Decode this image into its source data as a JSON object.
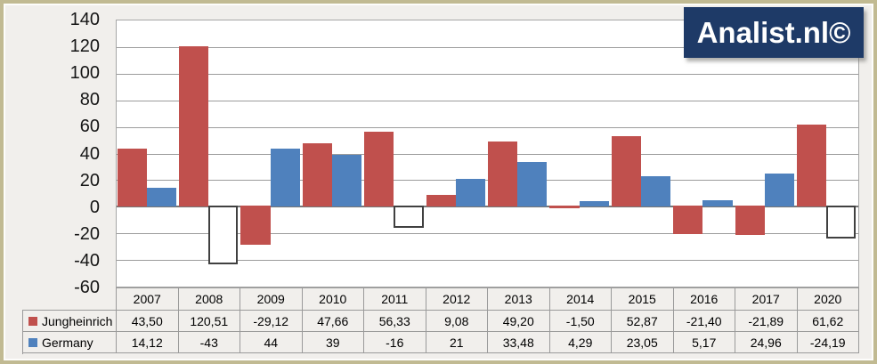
{
  "logo": {
    "text": "Analist.nl©"
  },
  "colors": {
    "jungheinrich_red": "#c0504d",
    "germany_blue": "#4f81bd",
    "negative_invert_fill": "#ffffff",
    "negative_invert_border": "#404040",
    "logo_bg": "#1e3a67",
    "frame_border_tan": "#c1ba92",
    "background": "#f1efec"
  },
  "chart_data": {
    "type": "bar",
    "title": "",
    "categories": [
      "2007",
      "2008",
      "2009",
      "2010",
      "2011",
      "2012",
      "2013",
      "2014",
      "2015",
      "2016",
      "2017",
      "2020"
    ],
    "series": [
      {
        "name": "Jungheinrich",
        "color": "#c0504d",
        "values": [
          43.5,
          120.51,
          -29.12,
          47.66,
          56.33,
          9.08,
          49.2,
          -1.5,
          52.87,
          -21.4,
          -21.89,
          61.62
        ],
        "labels": [
          "43,50",
          "120,51",
          "-29,12",
          "47,66",
          "56,33",
          "9,08",
          "49,20",
          "-1,50",
          "52,87",
          "-21,40",
          "-21,89",
          "61,62"
        ]
      },
      {
        "name": "Germany",
        "color": "#4f81bd",
        "negative_style": "white-fill-dark-outline",
        "values": [
          14.12,
          -43,
          44,
          39,
          -16,
          21,
          33.48,
          4.29,
          23.05,
          5.17,
          24.96,
          -24.19
        ],
        "labels": [
          "14,12",
          "-43",
          "44",
          "39",
          "-16",
          "21",
          "33,48",
          "4,29",
          "23,05",
          "5,17",
          "24,96",
          "-24,19"
        ]
      }
    ],
    "ylim": [
      -60,
      140
    ],
    "ytick_step": 20,
    "yticks": [
      140,
      120,
      100,
      80,
      60,
      40,
      20,
      0,
      -20,
      -40,
      -60
    ],
    "grid": true,
    "legend_position": "data-table-left",
    "data_table_shown": true
  }
}
